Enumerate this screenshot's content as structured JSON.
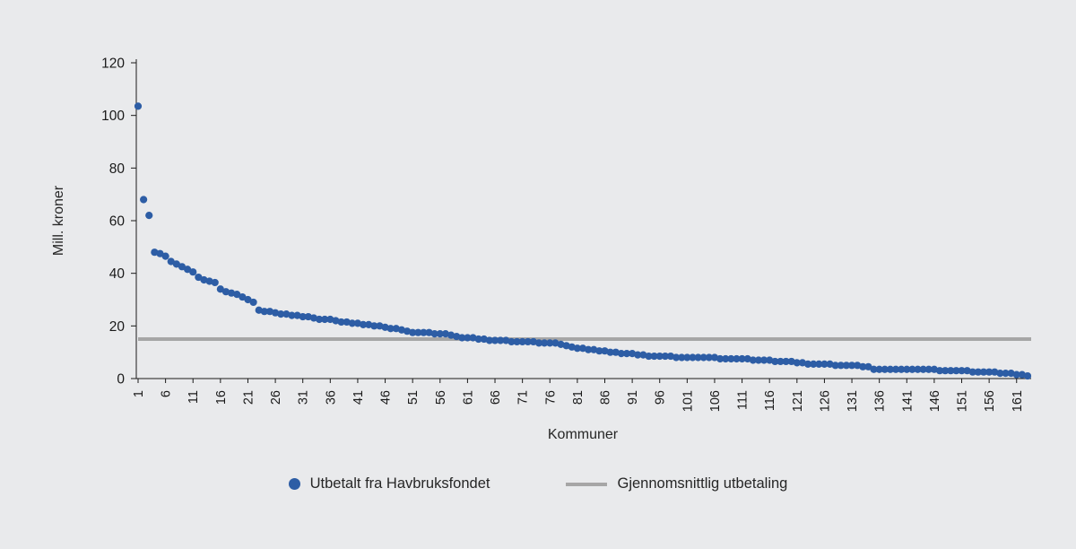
{
  "chart_data": {
    "type": "scatter",
    "title": "",
    "xlabel": "Kommuner",
    "ylabel": "Mill. kroner",
    "ylim": [
      0,
      120
    ],
    "y_ticks": [
      0,
      20,
      40,
      60,
      80,
      100,
      120
    ],
    "x_tick_labels": [
      1,
      6,
      11,
      16,
      21,
      26,
      31,
      36,
      41,
      46,
      51,
      56,
      61,
      66,
      71,
      76,
      81,
      86,
      91,
      96,
      101,
      106,
      111,
      116,
      121,
      126,
      131,
      136,
      141,
      146,
      151,
      156,
      161
    ],
    "n_points": 163,
    "grid": false,
    "legend_position": "bottom",
    "background": "#e9eaec",
    "axis_color": "#1a1a1a",
    "series": [
      {
        "name": "Utbetalt fra Havbruksfondet",
        "type": "scatter",
        "color": "#2d5da5",
        "values": [
          103.5,
          68,
          62,
          48,
          47.5,
          46.5,
          44.5,
          43.5,
          42.5,
          41.5,
          40.5,
          38.5,
          37.5,
          37,
          36.5,
          34,
          33,
          32.5,
          32,
          31,
          30,
          29,
          26,
          25.5,
          25.5,
          25,
          24.5,
          24.5,
          24,
          24,
          23.5,
          23.5,
          23,
          22.5,
          22.5,
          22.5,
          22,
          21.5,
          21.5,
          21,
          21,
          20.5,
          20.5,
          20,
          20,
          19.5,
          19,
          19,
          18.5,
          18,
          17.5,
          17.5,
          17.5,
          17.5,
          17,
          17,
          17,
          16.5,
          16,
          15.5,
          15.5,
          15.5,
          15,
          15,
          14.5,
          14.5,
          14.5,
          14.5,
          14,
          14,
          14,
          14,
          14,
          13.5,
          13.5,
          13.5,
          13.5,
          13,
          12.5,
          12,
          11.5,
          11.5,
          11,
          11,
          10.5,
          10.5,
          10,
          10,
          9.5,
          9.5,
          9.5,
          9,
          9,
          8.5,
          8.5,
          8.5,
          8.5,
          8.5,
          8,
          8,
          8,
          8,
          8,
          8,
          8,
          8,
          7.5,
          7.5,
          7.5,
          7.5,
          7.5,
          7.5,
          7,
          7,
          7,
          7,
          6.5,
          6.5,
          6.5,
          6.5,
          6,
          6,
          5.5,
          5.5,
          5.5,
          5.5,
          5.5,
          5,
          5,
          5,
          5,
          5,
          4.5,
          4.5,
          3.5,
          3.5,
          3.5,
          3.5,
          3.5,
          3.5,
          3.5,
          3.5,
          3.5,
          3.5,
          3.5,
          3.5,
          3,
          3,
          3,
          3,
          3,
          3,
          2.5,
          2.5,
          2.5,
          2.5,
          2.5,
          2,
          2,
          2,
          1.5,
          1.5,
          1
        ]
      },
      {
        "name": "Gjennomsnittlig utbetaling",
        "type": "hline",
        "color": "#a6a6a6",
        "value": 15
      }
    ]
  }
}
